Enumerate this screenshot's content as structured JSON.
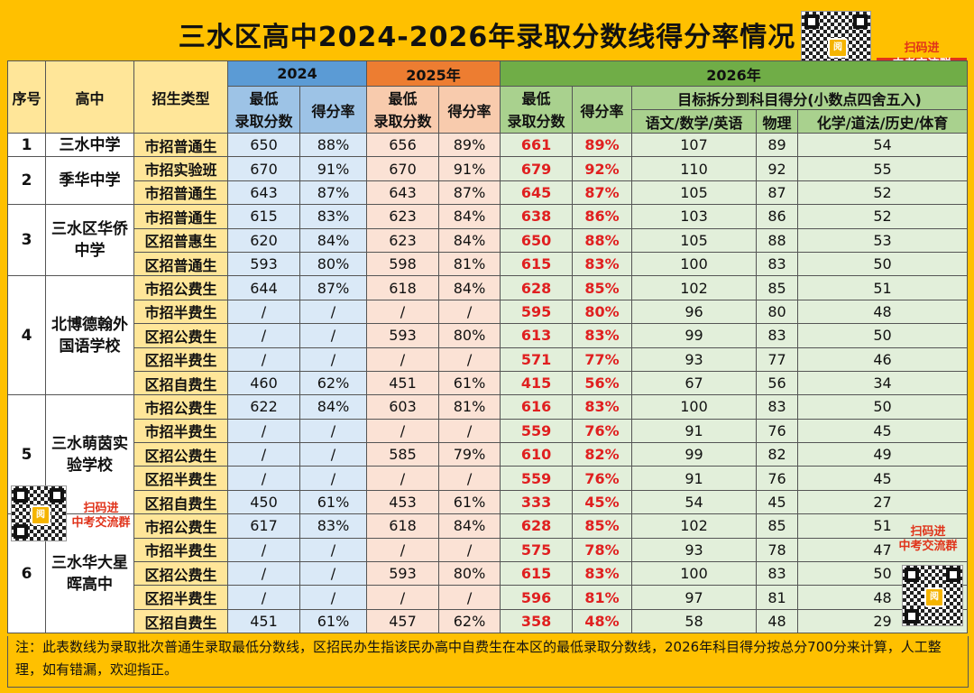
{
  "title": "三水区高中2024-2026年录取分数线得分率情况",
  "qr_labels": {
    "top": [
      "扫码进",
      "中考交流群"
    ],
    "left": [
      "扫码进",
      "中考交流群"
    ],
    "right": [
      "扫码进",
      "中考交流群"
    ]
  },
  "headers": {
    "index": "序号",
    "school": "高中",
    "type": "招生类型",
    "y2024": "2024",
    "y2025": "2025年",
    "y2026": "2026年",
    "min_score": "最低录取分数",
    "min_score_l1": "最低",
    "min_score_l2": "录取分数",
    "rate": "得分率",
    "target": "目标拆分到科目得分(小数点四舍五入)",
    "subj1": "语文/数学/英语",
    "subj2": "物理",
    "subj3": "化学/道法/历史/体育"
  },
  "schools": [
    {
      "index": "1",
      "name": "三水中学"
    },
    {
      "index": "2",
      "name": "季华中学"
    },
    {
      "index": "3",
      "name": "三水区华侨中学"
    },
    {
      "index": "4",
      "name": "北博德翰外国语学校"
    },
    {
      "index": "5",
      "name": "三水萌茵实验学校"
    },
    {
      "index": "6",
      "name": "三水华大星晖高中"
    }
  ],
  "rows": [
    {
      "type": "市招普通生",
      "s24": "650",
      "r24": "88%",
      "s25": "656",
      "r25": "89%",
      "s26": "661",
      "r26": "89%",
      "a": "107",
      "b": "89",
      "c": "54"
    },
    {
      "type": "市招实验班",
      "s24": "670",
      "r24": "91%",
      "s25": "670",
      "r25": "91%",
      "s26": "679",
      "r26": "92%",
      "a": "110",
      "b": "92",
      "c": "55"
    },
    {
      "type": "市招普通生",
      "s24": "643",
      "r24": "87%",
      "s25": "643",
      "r25": "87%",
      "s26": "645",
      "r26": "87%",
      "a": "105",
      "b": "87",
      "c": "52"
    },
    {
      "type": "市招普通生",
      "s24": "615",
      "r24": "83%",
      "s25": "623",
      "r25": "84%",
      "s26": "638",
      "r26": "86%",
      "a": "103",
      "b": "86",
      "c": "52"
    },
    {
      "type": "区招普惠生",
      "s24": "620",
      "r24": "84%",
      "s25": "623",
      "r25": "84%",
      "s26": "650",
      "r26": "88%",
      "a": "105",
      "b": "88",
      "c": "53"
    },
    {
      "type": "区招普通生",
      "s24": "593",
      "r24": "80%",
      "s25": "598",
      "r25": "81%",
      "s26": "615",
      "r26": "83%",
      "a": "100",
      "b": "83",
      "c": "50"
    },
    {
      "type": "市招公费生",
      "s24": "644",
      "r24": "87%",
      "s25": "618",
      "r25": "84%",
      "s26": "628",
      "r26": "85%",
      "a": "102",
      "b": "85",
      "c": "51"
    },
    {
      "type": "市招半费生",
      "s24": "/",
      "r24": "/",
      "s25": "/",
      "r25": "/",
      "s26": "595",
      "r26": "80%",
      "a": "96",
      "b": "80",
      "c": "48"
    },
    {
      "type": "区招公费生",
      "s24": "/",
      "r24": "/",
      "s25": "593",
      "r25": "80%",
      "s26": "613",
      "r26": "83%",
      "a": "99",
      "b": "83",
      "c": "50"
    },
    {
      "type": "区招半费生",
      "s24": "/",
      "r24": "/",
      "s25": "/",
      "r25": "/",
      "s26": "571",
      "r26": "77%",
      "a": "93",
      "b": "77",
      "c": "46"
    },
    {
      "type": "区招自费生",
      "s24": "460",
      "r24": "62%",
      "s25": "451",
      "r25": "61%",
      "s26": "415",
      "r26": "56%",
      "a": "67",
      "b": "56",
      "c": "34"
    },
    {
      "type": "市招公费生",
      "s24": "622",
      "r24": "84%",
      "s25": "603",
      "r25": "81%",
      "s26": "616",
      "r26": "83%",
      "a": "100",
      "b": "83",
      "c": "50"
    },
    {
      "type": "市招半费生",
      "s24": "/",
      "r24": "/",
      "s25": "/",
      "r25": "/",
      "s26": "559",
      "r26": "76%",
      "a": "91",
      "b": "76",
      "c": "45"
    },
    {
      "type": "区招公费生",
      "s24": "/",
      "r24": "/",
      "s25": "585",
      "r25": "79%",
      "s26": "610",
      "r26": "82%",
      "a": "99",
      "b": "82",
      "c": "49"
    },
    {
      "type": "区招半费生",
      "s24": "/",
      "r24": "/",
      "s25": "/",
      "r25": "/",
      "s26": "559",
      "r26": "76%",
      "a": "91",
      "b": "76",
      "c": "45"
    },
    {
      "type": "区招自费生",
      "s24": "450",
      "r24": "61%",
      "s25": "453",
      "r25": "61%",
      "s26": "333",
      "r26": "45%",
      "a": "54",
      "b": "45",
      "c": "27"
    },
    {
      "type": "市招公费生",
      "s24": "617",
      "r24": "83%",
      "s25": "618",
      "r25": "84%",
      "s26": "628",
      "r26": "85%",
      "a": "102",
      "b": "85",
      "c": "51"
    },
    {
      "type": "市招半费生",
      "s24": "/",
      "r24": "/",
      "s25": "/",
      "r25": "/",
      "s26": "575",
      "r26": "78%",
      "a": "93",
      "b": "78",
      "c": "47"
    },
    {
      "type": "区招公费生",
      "s24": "/",
      "r24": "/",
      "s25": "593",
      "r25": "80%",
      "s26": "615",
      "r26": "83%",
      "a": "100",
      "b": "83",
      "c": "50"
    },
    {
      "type": "区招半费生",
      "s24": "/",
      "r24": "/",
      "s25": "/",
      "r25": "/",
      "s26": "596",
      "r26": "81%",
      "a": "97",
      "b": "81",
      "c": "48"
    },
    {
      "type": "区招自费生",
      "s24": "451",
      "r24": "61%",
      "s25": "457",
      "r25": "62%",
      "s26": "358",
      "r26": "48%",
      "a": "58",
      "b": "48",
      "c": "29"
    }
  ],
  "footnote": "注：此表数线为录取批次普通生录取最低分数线，区招民办生指该民办高中自费生在本区的最低录取分数线，2026年科目得分按总分700分来计算，人工整理，如有错漏，欢迎指正。"
}
